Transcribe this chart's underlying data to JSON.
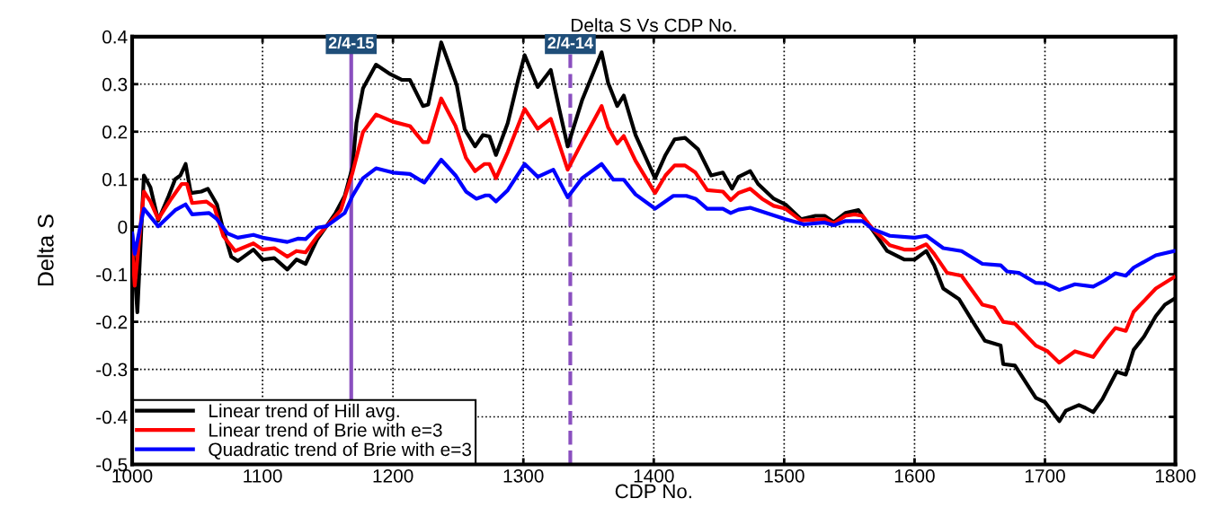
{
  "chart_data": {
    "type": "line",
    "title": "Delta S Vs CDP No.",
    "xlabel": "CDP No.",
    "ylabel": "Delta S",
    "xlim": [
      1000,
      1800
    ],
    "xticks": [
      1000,
      1100,
      1200,
      1300,
      1400,
      1500,
      1600,
      1700,
      1800
    ],
    "ylim": [
      -0.5,
      0.4
    ],
    "yticks": [
      -0.5,
      -0.4,
      -0.3,
      -0.2,
      -0.1,
      0,
      0.1,
      0.2,
      0.3,
      0.4
    ],
    "grid": true,
    "legend": "bottom left",
    "line_style": "solid",
    "marker": "none",
    "ref_lines": [
      {
        "axis": "x",
        "value": 1168,
        "color": "#8a4fbf",
        "line_style": "solid"
      },
      {
        "axis": "x",
        "value": 1336,
        "color": "#8a4fbf",
        "line_style": "dashed"
      }
    ],
    "annotations": [
      {
        "text": "2/4-15",
        "x": 1168,
        "y": 0.4
      },
      {
        "text": "2/4-14",
        "x": 1336,
        "y": 0.4
      }
    ],
    "series": [
      {
        "name": "Linear trend of Hill avg.",
        "color": "#000000",
        "x": [
          1000,
          1004,
          1009,
          1014,
          1020,
          1028,
          1033,
          1037,
          1041,
          1045,
          1053,
          1058,
          1065,
          1070,
          1076,
          1081,
          1093,
          1100,
          1109,
          1119,
          1126,
          1133,
          1142,
          1149,
          1156,
          1163,
          1169,
          1172,
          1177,
          1187,
          1198,
          1207,
          1213,
          1223,
          1227,
          1237,
          1249,
          1255,
          1263,
          1269,
          1274,
          1279,
          1288,
          1296,
          1301,
          1311,
          1321,
          1328,
          1334,
          1345,
          1360,
          1365,
          1372,
          1377,
          1386,
          1401,
          1409,
          1416,
          1424,
          1434,
          1444,
          1453,
          1460,
          1465,
          1474,
          1480,
          1492,
          1501,
          1513,
          1524,
          1531,
          1538,
          1547,
          1557,
          1568,
          1579,
          1592,
          1600,
          1609,
          1615,
          1622,
          1634,
          1647,
          1654,
          1666,
          1668,
          1677,
          1693,
          1700,
          1711,
          1716,
          1726,
          1731,
          1737,
          1744,
          1755,
          1762,
          1768,
          1776,
          1785,
          1792,
          1799
        ],
        "values": [
          -0.014,
          -0.18,
          0.108,
          0.083,
          0.013,
          0.065,
          0.1,
          0.108,
          0.132,
          0.071,
          0.074,
          0.08,
          0.047,
          -0.008,
          -0.063,
          -0.072,
          -0.048,
          -0.069,
          -0.066,
          -0.09,
          -0.069,
          -0.078,
          -0.026,
          0.001,
          0.029,
          0.065,
          0.126,
          0.218,
          0.291,
          0.341,
          0.321,
          0.309,
          0.309,
          0.254,
          0.257,
          0.388,
          0.297,
          0.205,
          0.169,
          0.193,
          0.19,
          0.151,
          0.218,
          0.309,
          0.361,
          0.294,
          0.33,
          0.242,
          0.169,
          0.266,
          0.367,
          0.303,
          0.254,
          0.276,
          0.193,
          0.102,
          0.151,
          0.184,
          0.187,
          0.163,
          0.108,
          0.114,
          0.08,
          0.105,
          0.117,
          0.09,
          0.059,
          0.047,
          0.016,
          0.023,
          0.023,
          0.01,
          0.029,
          0.035,
          -0.008,
          -0.051,
          -0.069,
          -0.069,
          -0.051,
          -0.081,
          -0.13,
          -0.152,
          -0.21,
          -0.24,
          -0.25,
          -0.289,
          -0.292,
          -0.36,
          -0.369,
          -0.409,
          -0.387,
          -0.375,
          -0.381,
          -0.39,
          -0.363,
          -0.305,
          -0.311,
          -0.259,
          -0.231,
          -0.188,
          -0.164,
          -0.152
        ]
      },
      {
        "name": "Linear trend of Brie with e=3",
        "color": "#ff0000",
        "x": [
          1000,
          1002,
          1009,
          1014,
          1020,
          1030,
          1038,
          1042,
          1046,
          1057,
          1063,
          1070,
          1079,
          1093,
          1100,
          1109,
          1119,
          1126,
          1133,
          1142,
          1149,
          1160,
          1169,
          1177,
          1187,
          1200,
          1213,
          1223,
          1227,
          1237,
          1248,
          1256,
          1263,
          1270,
          1274,
          1279,
          1288,
          1301,
          1311,
          1321,
          1334,
          1345,
          1360,
          1365,
          1372,
          1377,
          1386,
          1401,
          1409,
          1416,
          1424,
          1432,
          1441,
          1453,
          1459,
          1465,
          1474,
          1483,
          1492,
          1501,
          1513,
          1531,
          1538,
          1547,
          1554,
          1560,
          1568,
          1581,
          1592,
          1600,
          1609,
          1615,
          1625,
          1636,
          1652,
          1661,
          1668,
          1677,
          1693,
          1702,
          1711,
          1723,
          1737,
          1746,
          1754,
          1762,
          1768,
          1785,
          1799
        ],
        "values": [
          -0.045,
          -0.124,
          0.074,
          0.053,
          0.016,
          0.059,
          0.09,
          0.09,
          0.05,
          0.053,
          0.041,
          -0.02,
          -0.051,
          -0.035,
          -0.048,
          -0.045,
          -0.063,
          -0.051,
          -0.054,
          -0.02,
          0.001,
          0.035,
          0.114,
          0.199,
          0.236,
          0.221,
          0.212,
          0.178,
          0.178,
          0.27,
          0.212,
          0.145,
          0.117,
          0.132,
          0.132,
          0.102,
          0.157,
          0.248,
          0.206,
          0.227,
          0.12,
          0.178,
          0.254,
          0.209,
          0.175,
          0.191,
          0.139,
          0.071,
          0.108,
          0.129,
          0.129,
          0.114,
          0.077,
          0.074,
          0.056,
          0.071,
          0.08,
          0.059,
          0.044,
          0.038,
          0.013,
          0.016,
          0.007,
          0.023,
          0.026,
          0.023,
          -0.005,
          -0.039,
          -0.048,
          -0.048,
          -0.037,
          -0.057,
          -0.097,
          -0.103,
          -0.164,
          -0.17,
          -0.2,
          -0.204,
          -0.25,
          -0.262,
          -0.286,
          -0.262,
          -0.274,
          -0.24,
          -0.213,
          -0.219,
          -0.179,
          -0.13,
          -0.106
        ]
      },
      {
        "name": "Quadratic trend of Brie with e=3",
        "color": "#0000ff",
        "x": [
          1000,
          1002,
          1009,
          1020,
          1033,
          1041,
          1046,
          1059,
          1065,
          1073,
          1081,
          1093,
          1100,
          1119,
          1127,
          1133,
          1142,
          1149,
          1163,
          1169,
          1177,
          1187,
          1200,
          1213,
          1224,
          1237,
          1248,
          1256,
          1264,
          1271,
          1274,
          1279,
          1288,
          1301,
          1311,
          1323,
          1334,
          1345,
          1360,
          1369,
          1377,
          1386,
          1401,
          1415,
          1425,
          1432,
          1441,
          1453,
          1459,
          1465,
          1474,
          1483,
          1501,
          1515,
          1531,
          1538,
          1547,
          1560,
          1568,
          1581,
          1600,
          1609,
          1622,
          1636,
          1652,
          1666,
          1671,
          1680,
          1693,
          1700,
          1711,
          1723,
          1737,
          1746,
          1754,
          1762,
          1768,
          1785,
          1799
        ],
        "values": [
          -0.014,
          -0.057,
          0.038,
          0.001,
          0.035,
          0.047,
          0.026,
          0.029,
          0.016,
          -0.014,
          -0.023,
          -0.017,
          -0.023,
          -0.032,
          -0.025,
          -0.026,
          -0.002,
          0.001,
          0.029,
          0.065,
          0.102,
          0.123,
          0.114,
          0.111,
          0.093,
          0.141,
          0.108,
          0.074,
          0.059,
          0.066,
          0.066,
          0.053,
          0.077,
          0.132,
          0.105,
          0.12,
          0.062,
          0.102,
          0.132,
          0.099,
          0.099,
          0.068,
          0.038,
          0.065,
          0.065,
          0.059,
          0.038,
          0.038,
          0.029,
          0.036,
          0.04,
          0.032,
          0.016,
          0.005,
          0.009,
          0.003,
          0.012,
          0.012,
          -0.005,
          -0.019,
          -0.023,
          -0.019,
          -0.045,
          -0.051,
          -0.078,
          -0.081,
          -0.094,
          -0.097,
          -0.118,
          -0.119,
          -0.133,
          -0.121,
          -0.126,
          -0.113,
          -0.098,
          -0.103,
          -0.086,
          -0.06,
          -0.051
        ]
      }
    ]
  }
}
